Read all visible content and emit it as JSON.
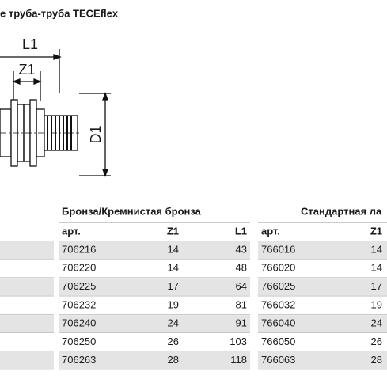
{
  "header": {
    "title": "е труба-труба TECEflex"
  },
  "drawing": {
    "l1": "L1",
    "z1": "Z1",
    "d1": "D1"
  },
  "table": {
    "groups": [
      "Бронза/Кремнистая бронза",
      "Стандартная ла"
    ],
    "columns": [
      "арт.",
      "Z1",
      "L1",
      "арт.",
      "Z1"
    ],
    "rows": [
      [
        "706216",
        "14",
        "43",
        "766016",
        "14"
      ],
      [
        "706220",
        "14",
        "48",
        "766020",
        "14"
      ],
      [
        "706225",
        "17",
        "64",
        "766025",
        "17"
      ],
      [
        "706232",
        "19",
        "81",
        "766032",
        "19"
      ],
      [
        "706240",
        "24",
        "91",
        "766040",
        "24"
      ],
      [
        "706250",
        "26",
        "103",
        "766050",
        "26"
      ],
      [
        "706263",
        "28",
        "118",
        "766063",
        "28"
      ]
    ]
  }
}
